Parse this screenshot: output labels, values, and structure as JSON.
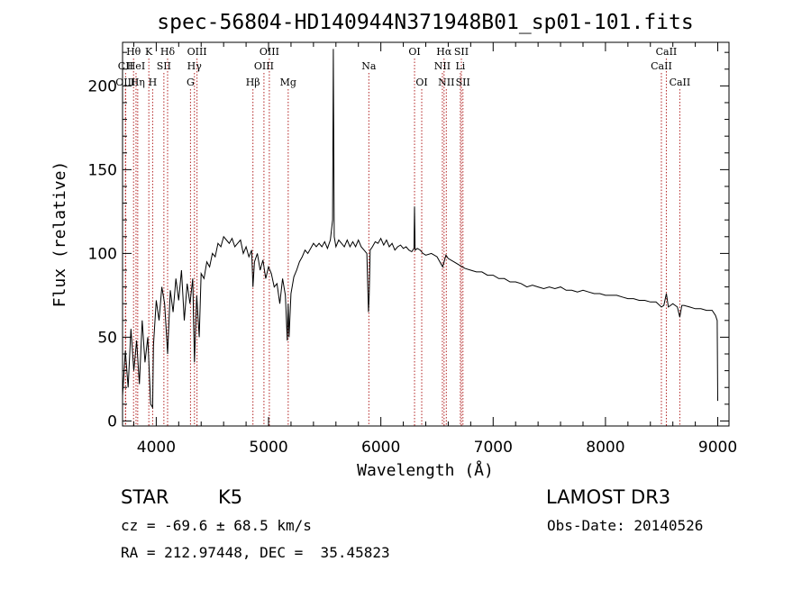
{
  "chart_data": {
    "type": "line",
    "title": "spec-56804-HD140944N371948B01_sp01-101.fits",
    "xlabel": "Wavelength (Å)",
    "ylabel": "Flux (relative)",
    "xlim": [
      3700,
      9100
    ],
    "ylim": [
      -3,
      226
    ],
    "xticks": [
      4000,
      5000,
      6000,
      7000,
      8000,
      9000
    ],
    "yticks": [
      0,
      50,
      100,
      150,
      200
    ],
    "grid": false,
    "series": [
      {
        "name": "spectrum",
        "x": [
          3700,
          3725,
          3750,
          3775,
          3800,
          3825,
          3850,
          3875,
          3900,
          3925,
          3950,
          3968,
          3975,
          4000,
          4025,
          4050,
          4075,
          4101,
          4125,
          4150,
          4175,
          4200,
          4225,
          4250,
          4275,
          4300,
          4325,
          4340,
          4360,
          4383,
          4400,
          4425,
          4450,
          4475,
          4500,
          4525,
          4550,
          4575,
          4600,
          4625,
          4650,
          4675,
          4700,
          4725,
          4750,
          4775,
          4800,
          4825,
          4850,
          4861,
          4875,
          4900,
          4925,
          4950,
          4975,
          5000,
          5025,
          5050,
          5075,
          5100,
          5125,
          5150,
          5167,
          5175,
          5183,
          5200,
          5225,
          5250,
          5275,
          5300,
          5325,
          5350,
          5375,
          5400,
          5425,
          5450,
          5475,
          5500,
          5525,
          5550,
          5570,
          5577,
          5585,
          5600,
          5625,
          5650,
          5675,
          5700,
          5725,
          5750,
          5775,
          5800,
          5825,
          5850,
          5875,
          5890,
          5896,
          5905,
          5925,
          5950,
          5975,
          6000,
          6025,
          6050,
          6075,
          6100,
          6125,
          6150,
          6175,
          6200,
          6225,
          6250,
          6275,
          6295,
          6300,
          6305,
          6325,
          6350,
          6375,
          6400,
          6450,
          6500,
          6550,
          6563,
          6580,
          6600,
          6650,
          6700,
          6750,
          6800,
          6850,
          6900,
          6950,
          7000,
          7050,
          7100,
          7150,
          7200,
          7250,
          7300,
          7350,
          7400,
          7450,
          7500,
          7550,
          7600,
          7650,
          7700,
          7750,
          7800,
          7850,
          7900,
          7950,
          8000,
          8050,
          8100,
          8150,
          8200,
          8250,
          8300,
          8350,
          8400,
          8450,
          8498,
          8520,
          8542,
          8560,
          8600,
          8640,
          8662,
          8680,
          8700,
          8750,
          8800,
          8850,
          8900,
          8950,
          8980,
          8995,
          9000
        ],
        "y": [
          15,
          42,
          20,
          55,
          30,
          48,
          22,
          60,
          35,
          50,
          10,
          8,
          45,
          72,
          60,
          80,
          70,
          40,
          78,
          65,
          85,
          72,
          90,
          60,
          82,
          70,
          85,
          35,
          75,
          50,
          88,
          85,
          95,
          92,
          100,
          98,
          106,
          104,
          110,
          108,
          106,
          109,
          104,
          106,
          108,
          100,
          104,
          98,
          102,
          80,
          95,
          100,
          90,
          96,
          85,
          92,
          88,
          80,
          82,
          70,
          85,
          75,
          48,
          70,
          50,
          76,
          86,
          90,
          95,
          98,
          102,
          100,
          103,
          106,
          104,
          106,
          104,
          107,
          103,
          108,
          120,
          222,
          110,
          104,
          108,
          106,
          104,
          108,
          104,
          107,
          104,
          108,
          104,
          102,
          100,
          65,
          75,
          102,
          104,
          107,
          106,
          109,
          105,
          108,
          104,
          106,
          102,
          104,
          105,
          103,
          104,
          102,
          101,
          103,
          128,
          102,
          103,
          102,
          100,
          99,
          100,
          98,
          92,
          95,
          99,
          97,
          95,
          93,
          91,
          90,
          89,
          89,
          87,
          87,
          85,
          85,
          83,
          83,
          82,
          80,
          81,
          80,
          79,
          80,
          79,
          80,
          78,
          78,
          77,
          78,
          77,
          76,
          76,
          75,
          75,
          75,
          74,
          73,
          73,
          72,
          72,
          71,
          71,
          68,
          69,
          76,
          68,
          70,
          68,
          62,
          69,
          69,
          68,
          67,
          67,
          66,
          66,
          63,
          60,
          12
        ]
      }
    ],
    "line_markers": [
      {
        "label": "CII",
        "x": 3727,
        "row": 1
      },
      {
        "label": "Hθ",
        "x": 3798,
        "row": 0
      },
      {
        "label": "OIII",
        "x": 3726,
        "row": 2
      },
      {
        "label": "HeI",
        "x": 3820,
        "row": 1
      },
      {
        "label": "Hη",
        "x": 3835,
        "row": 2
      },
      {
        "label": "K",
        "x": 3934,
        "row": 0
      },
      {
        "label": "SII",
        "x": 4068,
        "row": 1
      },
      {
        "label": "H",
        "x": 3968,
        "row": 2
      },
      {
        "label": "Hδ",
        "x": 4101,
        "row": 0
      },
      {
        "label": "OIII",
        "x": 4363,
        "row": 0
      },
      {
        "label": "Hγ",
        "x": 4340,
        "row": 1
      },
      {
        "label": "G",
        "x": 4305,
        "row": 2
      },
      {
        "label": "OIII",
        "x": 5007,
        "row": 0
      },
      {
        "label": "OIII",
        "x": 4959,
        "row": 1
      },
      {
        "label": "Hβ",
        "x": 4861,
        "row": 2
      },
      {
        "label": "Mg",
        "x": 5175,
        "row": 2
      },
      {
        "label": "Na",
        "x": 5893,
        "row": 1
      },
      {
        "label": "OI",
        "x": 6300,
        "row": 0
      },
      {
        "label": "OI",
        "x": 6364,
        "row": 2
      },
      {
        "label": "Hα",
        "x": 6563,
        "row": 0
      },
      {
        "label": "SII",
        "x": 6717,
        "row": 0
      },
      {
        "label": "NII",
        "x": 6548,
        "row": 1
      },
      {
        "label": "Li",
        "x": 6708,
        "row": 1
      },
      {
        "label": "NII",
        "x": 6583,
        "row": 2
      },
      {
        "label": "SII",
        "x": 6731,
        "row": 2
      },
      {
        "label": "CaII",
        "x": 8542,
        "row": 0
      },
      {
        "label": "CaII",
        "x": 8498,
        "row": 1
      },
      {
        "label": "CaII",
        "x": 8662,
        "row": 2
      }
    ]
  },
  "info": {
    "object_class": "STAR",
    "subclass": "K5",
    "survey": "LAMOST DR3",
    "redshift": "cz = -69.6 ± 68.5 km/s",
    "obs_date": "Obs-Date: 20140526",
    "coords": "RA = 212.97448, DEC =  35.45823"
  },
  "colors": {
    "line": "#000000",
    "marker": "#b22222",
    "background": "#ffffff"
  }
}
